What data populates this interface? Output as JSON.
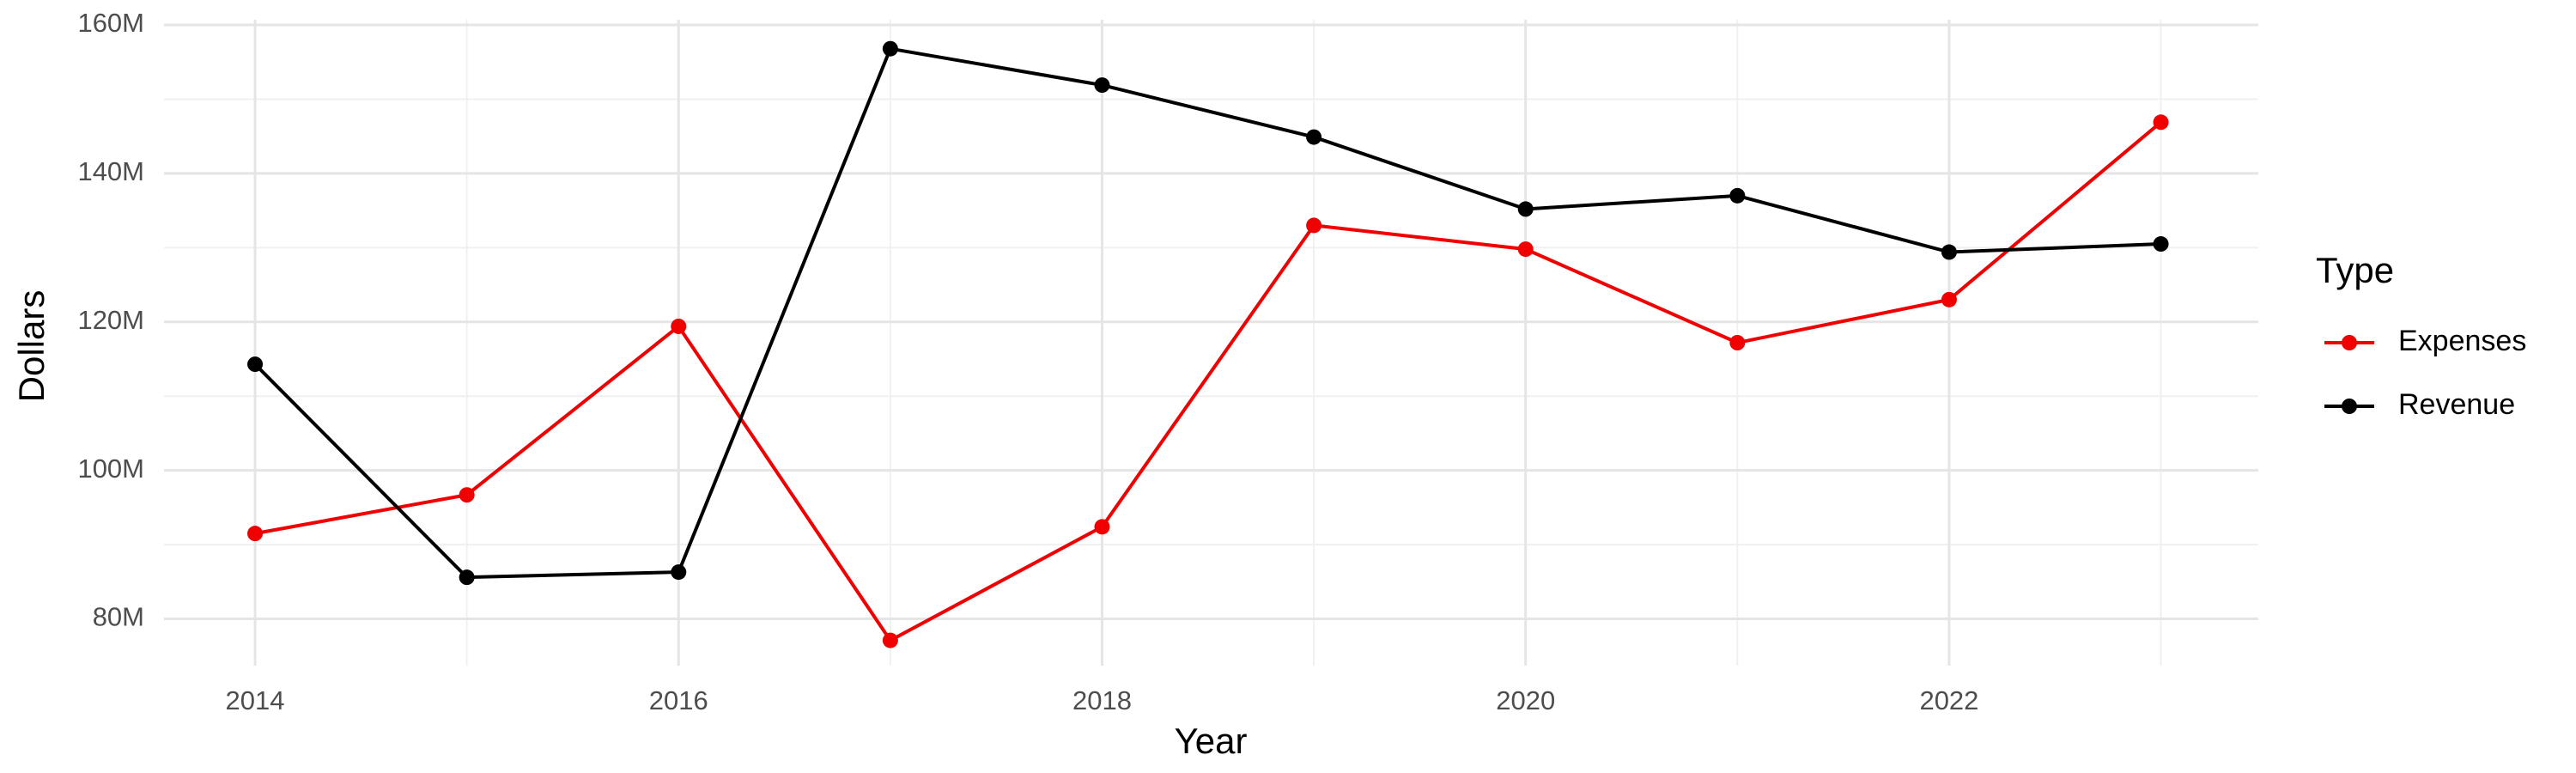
{
  "chart_data": {
    "type": "line",
    "x_label": "Year",
    "y_label": "Dollars",
    "legend_title": "Type",
    "legend": "right",
    "grid": true,
    "x": [
      2014,
      2015,
      2016,
      2017,
      2018,
      2019,
      2020,
      2021,
      2022,
      2023
    ],
    "series": [
      {
        "name": "Expenses",
        "color": "#f00000",
        "values": [
          91500000,
          96700000,
          119400000,
          77100000,
          92400000,
          133000000,
          129800000,
          117200000,
          123000000,
          146900000
        ]
      },
      {
        "name": "Revenue",
        "color": "#000000",
        "values": [
          114300000,
          85600000,
          86300000,
          156800000,
          151900000,
          144900000,
          135200000,
          137000000,
          129400000,
          130500000
        ]
      }
    ],
    "xlim": [
      2013.57,
      2023.46
    ],
    "xticks": [
      2014,
      2016,
      2018,
      2020,
      2022
    ],
    "ylim": [
      73700000,
      160700000
    ],
    "yticks": [
      {
        "value": 80000000,
        "label": "80M"
      },
      {
        "value": 100000000,
        "label": "100M"
      },
      {
        "value": 120000000,
        "label": "120M"
      },
      {
        "value": 140000000,
        "label": "140M"
      },
      {
        "value": 160000000,
        "label": "160M"
      }
    ]
  }
}
